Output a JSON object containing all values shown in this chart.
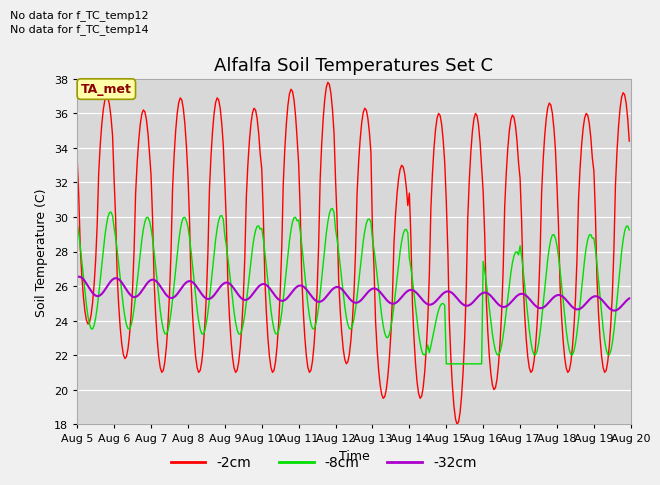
{
  "title": "Alfalfa Soil Temperatures Set C",
  "ylabel": "Soil Temperature (C)",
  "xlabel": "Time",
  "ylim": [
    18,
    38
  ],
  "yticks": [
    18,
    20,
    22,
    24,
    26,
    28,
    30,
    32,
    34,
    36,
    38
  ],
  "xtick_labels": [
    "Aug 5",
    "Aug 6",
    "Aug 7",
    "Aug 8",
    "Aug 9",
    "Aug 10",
    "Aug 11",
    "Aug 12",
    "Aug 13",
    "Aug 14",
    "Aug 15",
    "Aug 16",
    "Aug 17",
    "Aug 18",
    "Aug 19",
    "Aug 20"
  ],
  "color_2cm": "#ff0000",
  "color_8cm": "#00dd00",
  "color_32cm": "#aa00cc",
  "legend_entries": [
    "-2cm",
    "-8cm",
    "-32cm"
  ],
  "no_data_text1": "No data for f_TC_temp12",
  "no_data_text2": "No data for f_TC_temp14",
  "ta_met_label": "TA_met",
  "plot_bg": "#d8d8d8",
  "fig_bg": "#f0f0f0",
  "title_fontsize": 13,
  "axis_fontsize": 9,
  "tick_fontsize": 8,
  "legend_fontsize": 10,
  "nodata_fontsize": 8
}
